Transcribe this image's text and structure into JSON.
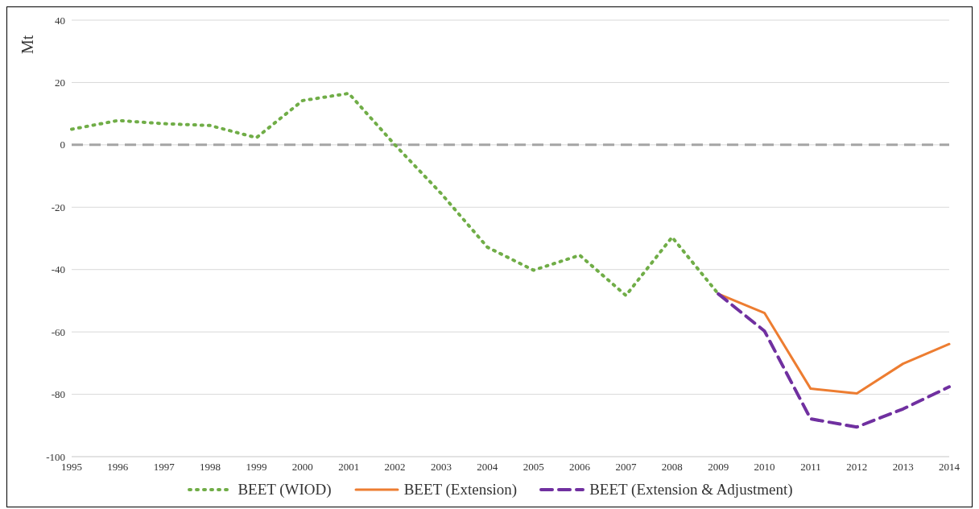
{
  "chart_data": {
    "type": "line",
    "ylabel": "Mt",
    "categories": [
      "1995",
      "1996",
      "1997",
      "1998",
      "1999",
      "2000",
      "2001",
      "2002",
      "2003",
      "2004",
      "2005",
      "2006",
      "2007",
      "2008",
      "2009",
      "2010",
      "2011",
      "2012",
      "2013",
      "2014"
    ],
    "series": [
      {
        "name": "BEET (WIOD)",
        "color": "#70ad47",
        "line_style": "dotted",
        "values": [
          5,
          7.8,
          6.8,
          6.2,
          2.3,
          14.2,
          16.5,
          0,
          -15.6,
          -32.8,
          -40.2,
          -35.4,
          -48.3,
          -29.6,
          -47.8,
          null,
          null,
          null,
          null,
          null
        ]
      },
      {
        "name": "BEET (Extension)",
        "color": "#ed7d31",
        "line_style": "solid",
        "values": [
          null,
          null,
          null,
          null,
          null,
          null,
          null,
          null,
          null,
          null,
          null,
          null,
          null,
          null,
          -47.8,
          -53.9,
          -78.2,
          -79.7,
          -70.2,
          -63.9
        ]
      },
      {
        "name": "BEET (Extension & Adjustment)",
        "color": "#7030a0",
        "line_style": "dashed",
        "values": [
          null,
          null,
          null,
          null,
          null,
          null,
          null,
          null,
          null,
          null,
          null,
          null,
          null,
          null,
          -47.8,
          -59.7,
          -87.9,
          -90.5,
          -84.7,
          -77.6
        ]
      }
    ],
    "ylim": [
      -100,
      40
    ],
    "yticks": [
      -100,
      -80,
      -60,
      -40,
      -20,
      0,
      20,
      40
    ],
    "grid": "y",
    "legend": "bottom",
    "marker": "none",
    "ref_lines": [
      {
        "axis": "y",
        "value": 0,
        "color": "#a5a5a5",
        "line_style": "dashed"
      }
    ]
  }
}
